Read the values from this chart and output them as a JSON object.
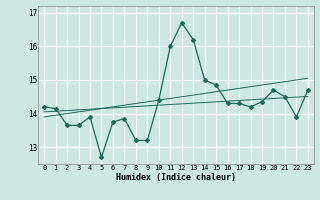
{
  "x": [
    0,
    1,
    2,
    3,
    4,
    5,
    6,
    7,
    8,
    9,
    10,
    11,
    12,
    13,
    14,
    15,
    16,
    17,
    18,
    19,
    20,
    21,
    22,
    23
  ],
  "y_main": [
    14.2,
    14.15,
    13.65,
    13.65,
    13.9,
    12.7,
    13.75,
    13.85,
    13.2,
    13.2,
    14.4,
    16.0,
    16.7,
    16.2,
    15.0,
    14.85,
    14.3,
    14.3,
    14.2,
    14.35,
    14.7,
    14.5,
    13.9,
    14.7
  ],
  "y_trend1": [
    14.05,
    14.07,
    14.09,
    14.11,
    14.13,
    14.15,
    14.17,
    14.19,
    14.21,
    14.23,
    14.25,
    14.27,
    14.29,
    14.31,
    14.33,
    14.35,
    14.37,
    14.39,
    14.41,
    14.43,
    14.45,
    14.47,
    14.49,
    14.51
  ],
  "y_trend2": [
    13.9,
    13.95,
    14.0,
    14.05,
    14.1,
    14.15,
    14.2,
    14.25,
    14.3,
    14.35,
    14.4,
    14.45,
    14.5,
    14.55,
    14.6,
    14.65,
    14.7,
    14.75,
    14.8,
    14.85,
    14.9,
    14.95,
    15.0,
    15.05
  ],
  "line_color": "#1a6b5a",
  "trend_color": "#1a6b5a",
  "bg_color": "#cce8e0",
  "grid_color": "#ffffff",
  "xlabel": "Humidex (Indice chaleur)",
  "ylim": [
    12.5,
    17.2
  ],
  "xlim": [
    -0.5,
    23.5
  ],
  "yticks": [
    13,
    14,
    15,
    16,
    17
  ],
  "xticks": [
    0,
    1,
    2,
    3,
    4,
    5,
    6,
    7,
    8,
    9,
    10,
    11,
    12,
    13,
    14,
    15,
    16,
    17,
    18,
    19,
    20,
    21,
    22,
    23
  ]
}
